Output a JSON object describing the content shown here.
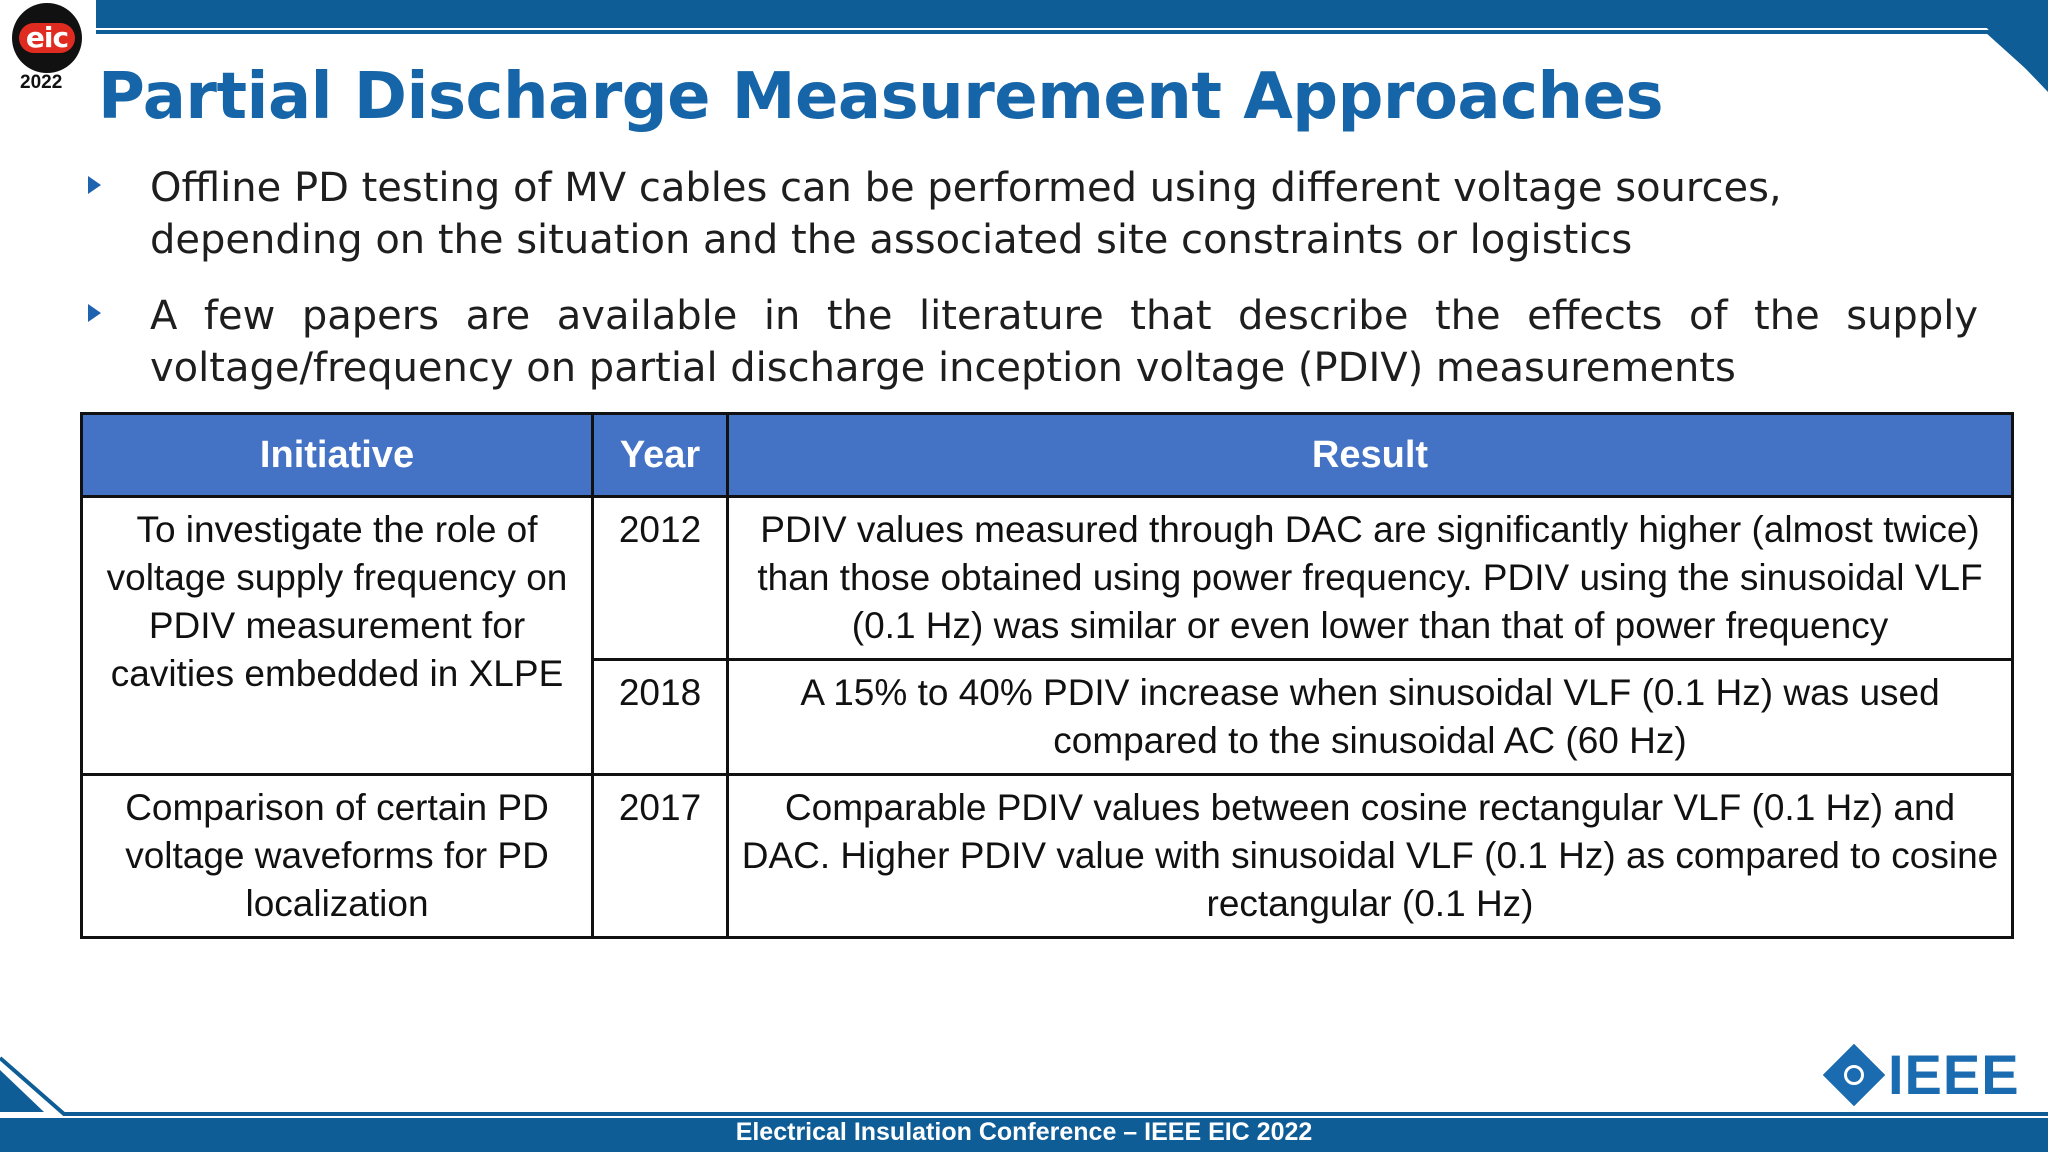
{
  "logo": {
    "mark": "eic",
    "year": "2022",
    "icon": "eic-conference-logo"
  },
  "slide": {
    "title": "Partial Discharge Measurement Approaches",
    "bullets": [
      "Offline PD testing of MV cables can be performed using different voltage sources, depending on the situation and the associated site constraints or logistics",
      "A few papers are available in the literature that describe the effects of the supply voltage/frequency on partial discharge inception voltage (PDIV) measurements"
    ]
  },
  "table": {
    "headers": [
      "Initiative",
      "Year",
      "Result"
    ],
    "rows": [
      {
        "initiative": "To investigate the role of voltage supply frequency on PDIV measurement for cavities embedded in XLPE",
        "entries": [
          {
            "year": "2012",
            "result": "PDIV values measured through DAC are significantly higher (almost twice) than those obtained using power frequency. PDIV using the sinusoidal VLF (0.1 Hz) was similar or even lower than that of power frequency"
          },
          {
            "year": "2018",
            "result": "A 15% to 40% PDIV increase when sinusoidal VLF (0.1 Hz) was used compared to the sinusoidal AC (60 Hz)"
          }
        ]
      },
      {
        "initiative": "Comparison of certain PD voltage waveforms for PD localization",
        "entries": [
          {
            "year": "2017",
            "result": "Comparable PDIV values between cosine rectangular VLF (0.1 Hz) and DAC. Higher PDIV value with sinusoidal VLF (0.1 Hz) as compared to cosine rectangular (0.1 Hz)"
          }
        ]
      }
    ]
  },
  "footer": {
    "text": "Electrical Insulation Conference – IEEE EIC 2022",
    "ieee_logo_text": "IEEE"
  },
  "colors": {
    "title": "#1565a8",
    "band": "#0f5d96",
    "header_fill": "#4472c4"
  }
}
